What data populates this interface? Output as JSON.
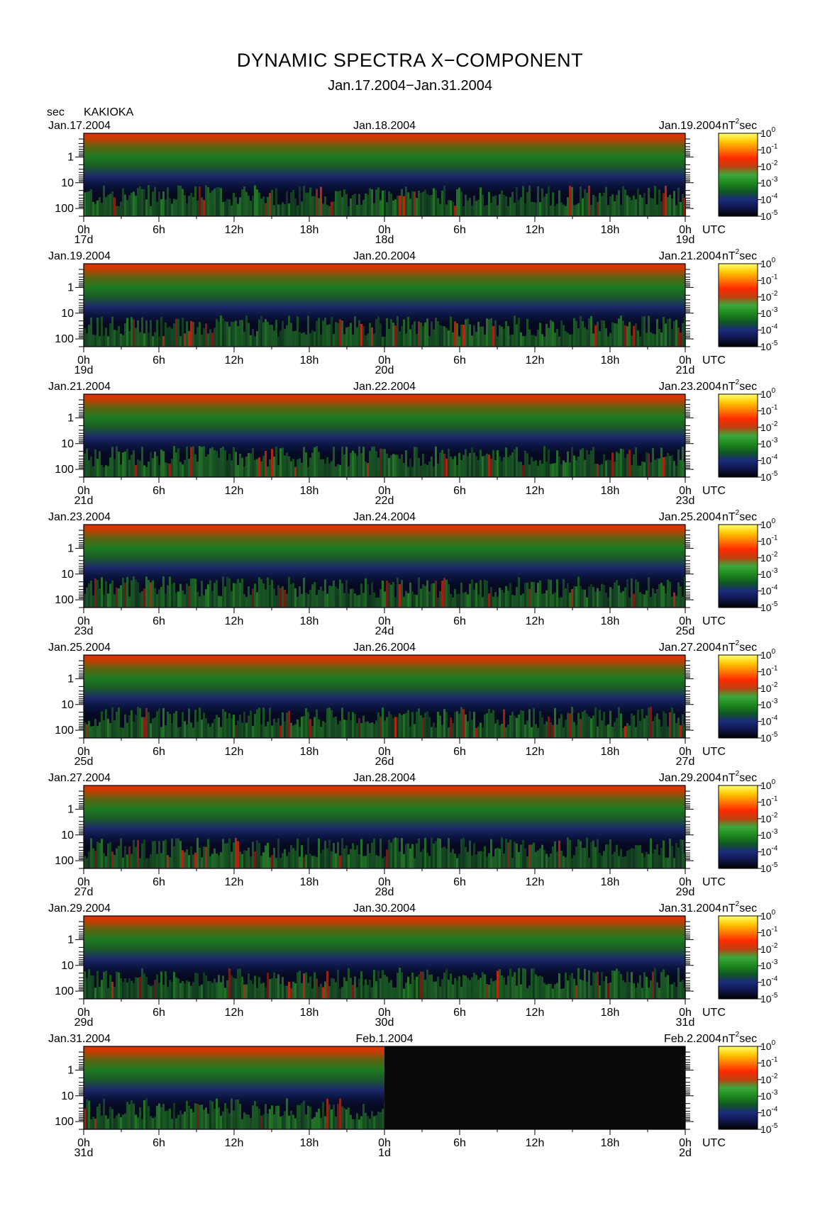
{
  "header": {
    "title": "DYNAMIC SPECTRA X−COMPONENT",
    "subtitle": "Jan.17.2004−Jan.31.2004",
    "y_unit": "sec",
    "station": "KAKIOKA"
  },
  "colors": {
    "no_data": "#0a0a0a",
    "colorbar": [
      "#000000",
      "#10164a",
      "#1b2a7a",
      "#0f5a20",
      "#1f8a1f",
      "#3aa83a",
      "#c04010",
      "#ff2a00",
      "#ff7a00",
      "#ffc800",
      "#ffff70"
    ]
  },
  "chart_data": {
    "type": "heatmap",
    "rows": 8,
    "hours_per_row": 48,
    "x_ticks": [
      "0h",
      "6h",
      "12h",
      "18h",
      "0h",
      "6h",
      "12h",
      "18h",
      "0h"
    ],
    "x_unit": "UTC",
    "y_axis": {
      "scale": "log",
      "ticks": [
        "1",
        "10",
        "100"
      ],
      "unit": "sec"
    },
    "colorbar": {
      "unit": "nT",
      "unit_exp": "2",
      "unit_suffix": "sec",
      "scale": "log",
      "ticks": [
        {
          "base": "10",
          "exp": "0"
        },
        {
          "base": "10",
          "exp": "-1"
        },
        {
          "base": "10",
          "exp": "-2"
        },
        {
          "base": "10",
          "exp": "-3"
        },
        {
          "base": "10",
          "exp": "-4"
        },
        {
          "base": "10",
          "exp": "-5"
        }
      ]
    },
    "panels": [
      {
        "date_left": "Jan.17.2004",
        "date_mid": "Jan.18.2004",
        "date_right": "Jan.19.2004",
        "day_left": "17d",
        "day_mid": "18d",
        "day_right": "19d",
        "data_until_hours": 48
      },
      {
        "date_left": "Jan.19.2004",
        "date_mid": "Jan.20.2004",
        "date_right": "Jan.21.2004",
        "day_left": "19d",
        "day_mid": "20d",
        "day_right": "21d",
        "data_until_hours": 48
      },
      {
        "date_left": "Jan.21.2004",
        "date_mid": "Jan.22.2004",
        "date_right": "Jan.23.2004",
        "day_left": "21d",
        "day_mid": "22d",
        "day_right": "23d",
        "data_until_hours": 48
      },
      {
        "date_left": "Jan.23.2004",
        "date_mid": "Jan.24.2004",
        "date_right": "Jan.25.2004",
        "day_left": "23d",
        "day_mid": "24d",
        "day_right": "25d",
        "data_until_hours": 48
      },
      {
        "date_left": "Jan.25.2004",
        "date_mid": "Jan.26.2004",
        "date_right": "Jan.27.2004",
        "day_left": "25d",
        "day_mid": "26d",
        "day_right": "27d",
        "data_until_hours": 48
      },
      {
        "date_left": "Jan.27.2004",
        "date_mid": "Jan.28.2004",
        "date_right": "Jan.29.2004",
        "day_left": "27d",
        "day_mid": "28d",
        "day_right": "29d",
        "data_until_hours": 48
      },
      {
        "date_left": "Jan.29.2004",
        "date_mid": "Jan.30.2004",
        "date_right": "Jan.31.2004",
        "day_left": "29d",
        "day_mid": "30d",
        "day_right": "31d",
        "data_until_hours": 48
      },
      {
        "date_left": "Jan.31.2004",
        "date_mid": "Feb.1.2004",
        "date_right": "Feb.2.2004",
        "day_left": "31d",
        "day_mid": "1d",
        "day_right": "2d",
        "data_until_hours": 24
      }
    ]
  }
}
